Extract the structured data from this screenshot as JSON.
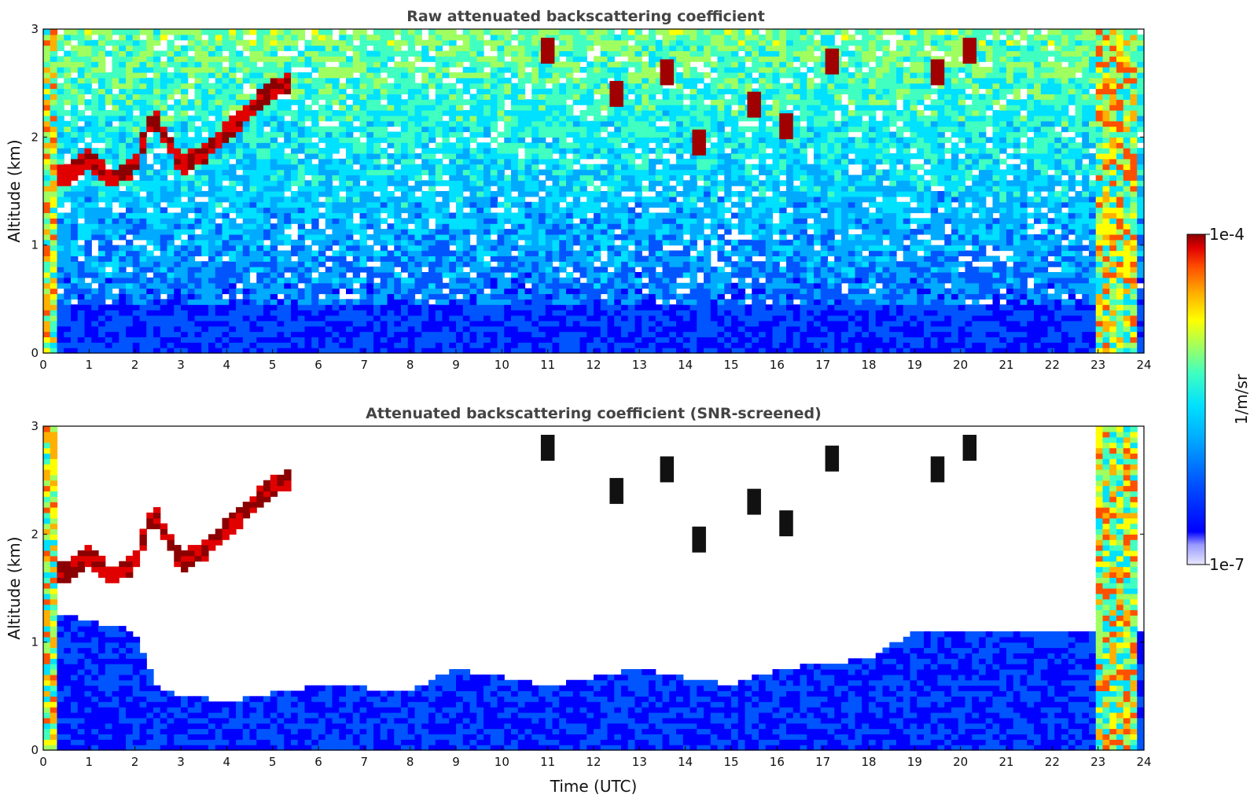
{
  "chart_data": [
    {
      "type": "heatmap",
      "title": "Raw attenuated backscattering coefficient",
      "xlabel": "",
      "ylabel": "Altitude (km)",
      "xlim": [
        0,
        24
      ],
      "ylim": [
        0,
        3
      ],
      "xticks": [
        "0",
        "1",
        "2",
        "3",
        "4",
        "5",
        "6",
        "7",
        "8",
        "9",
        "10",
        "11",
        "12",
        "13",
        "14",
        "15",
        "16",
        "17",
        "18",
        "19",
        "20",
        "21",
        "22",
        "23",
        "24"
      ],
      "yticks": [
        "0",
        "1",
        "2",
        "3"
      ],
      "screened": false,
      "features": {
        "boundary_layer_top_km": 0.4,
        "cloud_layer_points": [
          [
            0.0,
            1.6
          ],
          [
            0.5,
            1.65
          ],
          [
            1.0,
            1.8
          ],
          [
            1.5,
            1.6
          ],
          [
            2.0,
            1.75
          ],
          [
            2.4,
            2.2
          ],
          [
            3.0,
            1.75
          ],
          [
            3.5,
            1.85
          ],
          [
            4.0,
            2.05
          ],
          [
            4.5,
            2.25
          ],
          [
            5.0,
            2.45
          ],
          [
            5.4,
            2.5
          ]
        ],
        "dense_column_hours": [
          [
            0.0,
            0.35
          ],
          [
            23.0,
            23.9
          ]
        ]
      }
    },
    {
      "type": "heatmap",
      "title": "Attenuated backscattering coefficient (SNR-screened)",
      "xlabel": "Time (UTC)",
      "ylabel": "Altitude (km)",
      "xlim": [
        0,
        24
      ],
      "ylim": [
        0,
        3
      ],
      "xticks": [
        "0",
        "1",
        "2",
        "3",
        "4",
        "5",
        "6",
        "7",
        "8",
        "9",
        "10",
        "11",
        "12",
        "13",
        "14",
        "15",
        "16",
        "17",
        "18",
        "19",
        "20",
        "21",
        "22",
        "23",
        "24"
      ],
      "yticks": [
        "0",
        "1",
        "2",
        "3"
      ],
      "screened": true,
      "features": {
        "valid_signal_top_km": [
          [
            0,
            1.3
          ],
          [
            2,
            1.1
          ],
          [
            2.5,
            0.55
          ],
          [
            4,
            0.45
          ],
          [
            6,
            0.6
          ],
          [
            8,
            0.55
          ],
          [
            9,
            0.75
          ],
          [
            11,
            0.6
          ],
          [
            13,
            0.75
          ],
          [
            15,
            0.6
          ],
          [
            16,
            0.75
          ],
          [
            18,
            0.85
          ],
          [
            19,
            1.1
          ],
          [
            23,
            1.1
          ]
        ],
        "cloud_layer_points": [
          [
            0.0,
            1.6
          ],
          [
            0.5,
            1.65
          ],
          [
            1.0,
            1.8
          ],
          [
            1.5,
            1.6
          ],
          [
            2.0,
            1.75
          ],
          [
            2.4,
            2.2
          ],
          [
            3.0,
            1.75
          ],
          [
            3.5,
            1.85
          ],
          [
            4.0,
            2.05
          ],
          [
            4.5,
            2.25
          ],
          [
            5.0,
            2.45
          ],
          [
            5.4,
            2.5
          ]
        ],
        "dense_column_hours": [
          [
            0.0,
            0.35
          ],
          [
            23.0,
            23.9
          ]
        ]
      }
    }
  ],
  "colorbar": {
    "label": "1/m/sr",
    "max_label": "1e-4",
    "min_label": "1e-7",
    "colormap": "jet",
    "colors": [
      "#e8e8ff",
      "#c8c8ff",
      "#9999ff",
      "#0000ff",
      "#0055ff",
      "#00aaff",
      "#00e0ff",
      "#40ffc0",
      "#a0ff60",
      "#ffff00",
      "#ffb000",
      "#ff5000",
      "#e00000",
      "#8b0000"
    ]
  }
}
